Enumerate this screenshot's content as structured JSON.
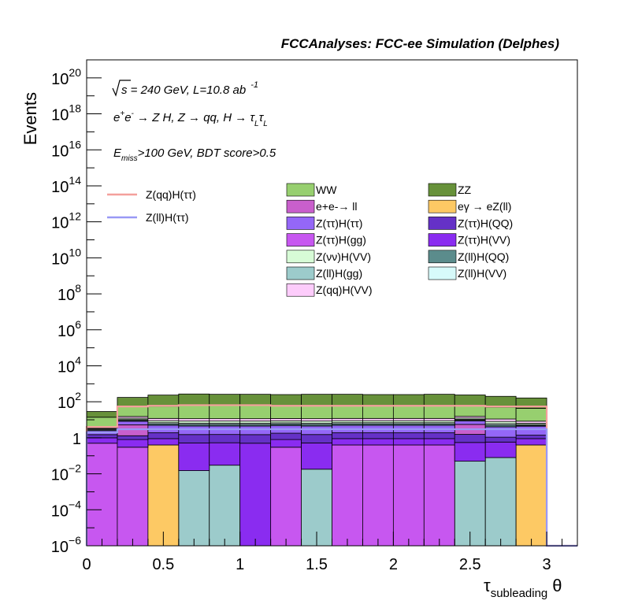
{
  "header": {
    "title": "FCCAnalyses: FCC-ee Simulation (Delphes)"
  },
  "annotations": {
    "sqrt_symbol": "√",
    "line1": "s = 240 GeV, L=10.8 ab",
    "line1_sup": "-1",
    "line2_a": "e",
    "line2_a_sup": "+",
    "line2_b": "e",
    "line2_b_sup": "-",
    "line2_c": " → Z H, Z  → qq, H  →  τ",
    "line2_sub1": "L",
    "line2_d": "τ",
    "line2_sub2": "L",
    "line3_a": "E",
    "line3_sub": "miss",
    "line3_b": ">100 GeV, BDT score>0.5"
  },
  "chart_data": {
    "type": "histogram-stacked",
    "title": "FCCAnalyses: FCC-ee Simulation (Delphes)",
    "xlabel_main": "τ",
    "xlabel_sub": "subleading",
    "xlabel_tail": "θ",
    "ylabel": "Events",
    "y_scale": "log",
    "xlim": [
      0,
      3.2
    ],
    "ylim": [
      1e-06,
      1e+21
    ],
    "bin_edges": [
      0,
      0.2,
      0.4,
      0.6,
      0.8,
      1.0,
      1.2,
      1.4,
      1.6,
      1.8,
      2.0,
      2.2,
      2.4,
      2.6,
      2.8,
      3.0
    ],
    "x_ticks": [
      {
        "v": 0,
        "label": "0"
      },
      {
        "v": 0.5,
        "label": "0.5"
      },
      {
        "v": 1,
        "label": "1"
      },
      {
        "v": 1.5,
        "label": "1.5"
      },
      {
        "v": 2,
        "label": "2"
      },
      {
        "v": 2.5,
        "label": "2.5"
      },
      {
        "v": 3,
        "label": "3"
      }
    ],
    "y_ticks": [
      {
        "exp": -6,
        "base": "10",
        "sup": "−6"
      },
      {
        "exp": -4,
        "base": "10",
        "sup": "−4"
      },
      {
        "exp": -2,
        "base": "10",
        "sup": "−2"
      },
      {
        "exp": 0,
        "base": "1",
        "sup": ""
      },
      {
        "exp": 2,
        "base": "10",
        "sup": "2"
      },
      {
        "exp": 4,
        "base": "10",
        "sup": "4"
      },
      {
        "exp": 6,
        "base": "10",
        "sup": "6"
      },
      {
        "exp": 8,
        "base": "10",
        "sup": "8"
      },
      {
        "exp": 10,
        "base": "10",
        "sup": "10"
      },
      {
        "exp": 12,
        "base": "10",
        "sup": "12"
      },
      {
        "exp": 14,
        "base": "10",
        "sup": "14"
      },
      {
        "exp": 16,
        "base": "10",
        "sup": "16"
      },
      {
        "exp": 18,
        "base": "10",
        "sup": "18"
      },
      {
        "exp": 20,
        "base": "10",
        "sup": "20"
      }
    ],
    "stack": [
      {
        "name": "Z(ll)H(gg)",
        "color": "#9ccbcb",
        "values": [
          0,
          0,
          0,
          0.015,
          0.03,
          0,
          0,
          0.018,
          0,
          0,
          0,
          0,
          0.05,
          0.08,
          0
        ]
      },
      {
        "name": "Z(ττ)H(gg)",
        "color": "#c757f0",
        "values": [
          0.5,
          0.3,
          0,
          0,
          0,
          0,
          0.3,
          0,
          0.4,
          0.4,
          0.4,
          0.4,
          0,
          0,
          0
        ]
      },
      {
        "name": "eγ → eZ(ll)",
        "color": "#fdc964",
        "values": [
          0,
          0,
          0.4,
          0,
          0,
          0,
          0,
          0,
          0,
          0,
          0,
          0,
          0,
          0,
          0.4
        ]
      },
      {
        "name": "Z(ττ)H(VV)",
        "color": "#8a2cf0",
        "values": [
          0.5,
          0.5,
          0.5,
          0.5,
          0.5,
          0.5,
          0.5,
          0.5,
          0.5,
          0.5,
          0.5,
          0.5,
          0.5,
          0.5,
          0.5
        ]
      },
      {
        "name": "Z(ττ)H(QQ)",
        "color": "#6531c7",
        "values": [
          0.5,
          0.5,
          1,
          1,
          1,
          1,
          1,
          1,
          1,
          1,
          1,
          1,
          1,
          0.5,
          0.5
        ]
      },
      {
        "name": "e+e- → ll",
        "color": "#c95fcc",
        "values": [
          0,
          4,
          0,
          0,
          0,
          0,
          0,
          0,
          0,
          0,
          0,
          0,
          4,
          0,
          0
        ]
      },
      {
        "name": "Z(ττ)H(ττ)",
        "color": "#9467f7",
        "values": [
          1,
          3,
          3,
          3,
          3,
          3,
          3,
          3,
          3,
          3,
          3,
          3,
          3,
          3,
          3
        ]
      },
      {
        "name": "Z(ll)H(QQ)",
        "color": "#5b8c8c",
        "values": [
          0.3,
          1,
          1,
          1,
          1,
          1,
          1,
          1,
          1,
          1,
          1,
          1,
          1,
          1,
          0.5
        ]
      },
      {
        "name": "Z(ll)H(VV)",
        "color": "#d7fafa",
        "values": [
          0.3,
          1,
          1,
          1,
          1,
          1,
          1,
          1,
          1,
          1,
          1,
          1,
          1,
          1,
          0.5
        ]
      },
      {
        "name": "Z(νν)H(VV)",
        "color": "#d7fbd6",
        "values": [
          0.3,
          2,
          2,
          2,
          2,
          2,
          2,
          2,
          2,
          2,
          2,
          2,
          2,
          2,
          1
        ]
      },
      {
        "name": "Z(qq)H(VV)",
        "color": "#fdccfb",
        "values": [
          0.5,
          3,
          3,
          3,
          3,
          3,
          3,
          3,
          3,
          3,
          3,
          3,
          3,
          3,
          2
        ]
      },
      {
        "name": "WW",
        "color": "#97cf6f",
        "values": [
          10,
          40,
          45,
          50,
          50,
          50,
          50,
          50,
          50,
          50,
          50,
          50,
          45,
          40,
          35
        ]
      },
      {
        "name": "ZZ",
        "color": "#67913a",
        "values": [
          15,
          120,
          180,
          210,
          200,
          200,
          190,
          200,
          200,
          190,
          190,
          200,
          180,
          150,
          120
        ]
      }
    ],
    "signals": [
      {
        "name": "Z(qq)H(ττ)",
        "color": "#f4a09c",
        "values": [
          4,
          55,
          60,
          65,
          65,
          65,
          60,
          60,
          60,
          60,
          60,
          60,
          60,
          55,
          55
        ]
      },
      {
        "name": "Z(ll)H(ττ)",
        "color": "#9999f6",
        "values": [
          2,
          3,
          3,
          3,
          3,
          3,
          3,
          3,
          3,
          3,
          3,
          3,
          3,
          3,
          3
        ]
      }
    ],
    "legend_signals": [
      {
        "label": "Z(qq)H(ττ)",
        "color": "#f4a09c"
      },
      {
        "label": "Z(ll)H(ττ)",
        "color": "#9999f6"
      }
    ],
    "legend_backgrounds": [
      {
        "label": "WW",
        "color": "#97cf6f",
        "col": 0,
        "row": 0
      },
      {
        "label": "ZZ",
        "color": "#67913a",
        "col": 1,
        "row": 0
      },
      {
        "label": "e+e-→ ll",
        "color": "#c95fcc",
        "col": 0,
        "row": 1
      },
      {
        "label": "eγ → eZ(ll)",
        "color": "#fdc964",
        "col": 1,
        "row": 1
      },
      {
        "label": "Z(ττ)H(ττ)",
        "color": "#9467f7",
        "col": 0,
        "row": 2
      },
      {
        "label": "Z(ττ)H(QQ)",
        "color": "#6531c7",
        "col": 1,
        "row": 2
      },
      {
        "label": "Z(ττ)H(gg)",
        "color": "#c757f0",
        "col": 0,
        "row": 3
      },
      {
        "label": "Z(ττ)H(VV)",
        "color": "#8a2cf0",
        "col": 1,
        "row": 3
      },
      {
        "label": "Z(νν)H(VV)",
        "color": "#d7fbd6",
        "col": 0,
        "row": 4
      },
      {
        "label": "Z(ll)H(QQ)",
        "color": "#5b8c8c",
        "col": 1,
        "row": 4
      },
      {
        "label": "Z(ll)H(gg)",
        "color": "#9ccbcb",
        "col": 0,
        "row": 5
      },
      {
        "label": "Z(ll)H(VV)",
        "color": "#d7fafa",
        "col": 1,
        "row": 5
      },
      {
        "label": "Z(qq)H(VV)",
        "color": "#fdccfb",
        "col": 0,
        "row": 6
      }
    ]
  }
}
